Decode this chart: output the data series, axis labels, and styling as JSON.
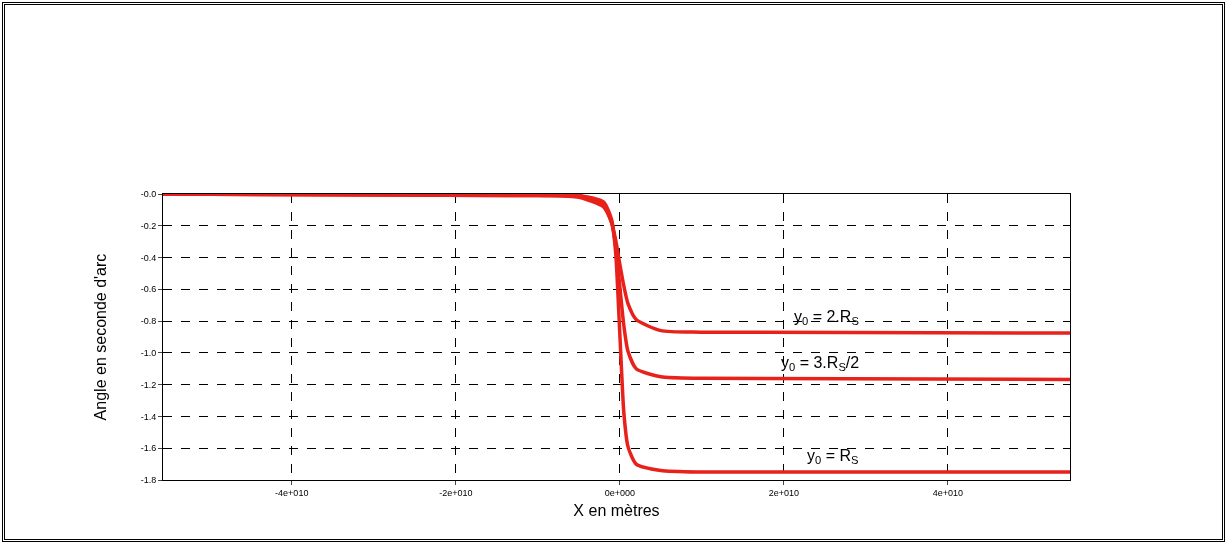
{
  "chart_data": {
    "type": "line",
    "xlabel": "X en mètres",
    "ylabel": "Angle en seconde d'arc",
    "xlim": [
      -55700000000.0,
      54900000000.0
    ],
    "xticks": [
      {
        "value": -40000000000.0,
        "label": "-4e+010"
      },
      {
        "value": -20000000000.0,
        "label": "-2e+010"
      },
      {
        "value": 0,
        "label": "0e+000"
      },
      {
        "value": 20000000000.0,
        "label": "2e+010"
      },
      {
        "value": 40000000000.0,
        "label": "4e+010"
      }
    ],
    "ylim": [
      -1.8,
      0
    ],
    "yticks": [
      {
        "value": 0,
        "label": "-0.0"
      },
      -0.2,
      -0.4,
      -0.6,
      -0.8,
      {
        "value": -1,
        "label": "-1.0"
      },
      -1.2,
      -1.4,
      -1.6,
      -1.8
    ],
    "grid": true,
    "legend": false,
    "marker": "none",
    "line_style": "solid",
    "x": [
      -55700000000.0,
      -10000000000.0,
      -5000000000.0,
      -2000000000.0,
      -1000000000.0,
      -500000000.0,
      0,
      500000000.0,
      1000000000.0,
      2000000000.0,
      5000000000.0,
      10000000000.0,
      54900000000.0
    ],
    "series": [
      {
        "name": "y$_{0}$ = 2.R$_{S}$",
        "color": "#e8211b",
        "values": [
          0,
          -0.01,
          -0.02,
          -0.08,
          -0.18,
          -0.29,
          -0.44,
          -0.58,
          -0.69,
          -0.79,
          -0.86,
          -0.87,
          -0.875
        ]
      },
      {
        "name": "y$_{0}$ = 3.R$_{S}$/2",
        "color": "#e8211b",
        "values": [
          0,
          -0.01,
          -0.01,
          -0.07,
          -0.18,
          -0.33,
          -0.58,
          -0.83,
          -0.99,
          -1.1,
          -1.15,
          -1.16,
          -1.167
        ]
      },
      {
        "name": "y$_{0}$ = R$_{S}$",
        "color": "#e8211b",
        "values": [
          0,
          0,
          -0.01,
          -0.05,
          -0.16,
          -0.37,
          -0.875,
          -1.38,
          -1.59,
          -1.7,
          -1.74,
          -1.75,
          -1.75
        ]
      }
    ]
  }
}
